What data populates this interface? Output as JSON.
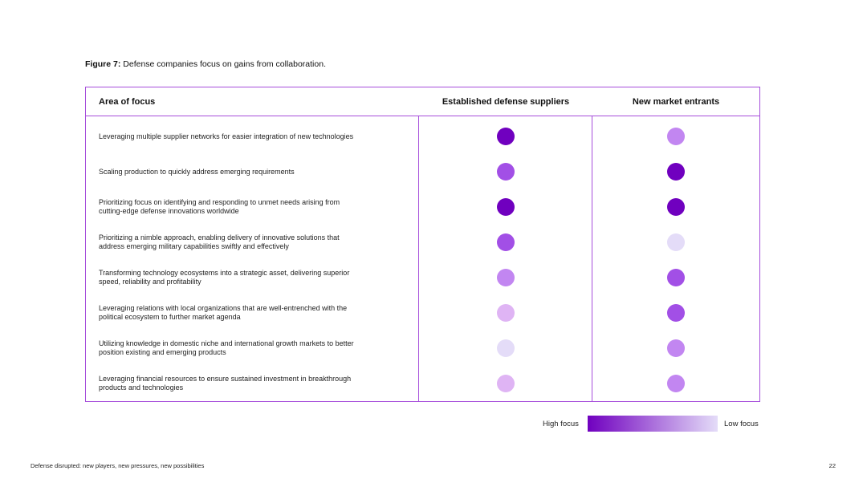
{
  "caption": {
    "label": "Figure 7:",
    "text": "Defense companies focus on gains from collaboration."
  },
  "columns": {
    "area": "Area of focus",
    "established": "Established defense suppliers",
    "entrants": "New market entrants"
  },
  "legend": {
    "high": "High focus",
    "low": "Low focus",
    "color_high": "#7000bf",
    "color_low": "#e4dcf8"
  },
  "chart_data": {
    "type": "table",
    "scale": "focus level from 1 (low focus) to 5 (high focus)",
    "series": [
      {
        "name": "Established defense suppliers",
        "values": [
          5,
          4,
          5,
          4,
          3,
          2,
          1,
          2
        ]
      },
      {
        "name": "New market entrants",
        "values": [
          3,
          5,
          5,
          1,
          4,
          4,
          3,
          3
        ]
      }
    ],
    "rows": [
      "Leveraging multiple supplier networks for easier integration of new technologies",
      "Scaling production to quickly address emerging requirements",
      "Prioritizing focus on identifying and responding to unmet needs arising from cutting-edge defense innovations worldwide",
      "Prioritizing a nimble approach, enabling delivery of innovative solutions that address emerging military capabilities swiftly and effectively",
      "Transforming technology ecosystems into a strategic asset, delivering superior speed, reliability and profitability",
      "Leveraging relations with local organizations that are well-entrenched with the political ecosystem to further market agenda",
      "Utilizing knowledge in domestic niche and international growth markets to better position existing and emerging products",
      "Leveraging financial resources to ensure sustained investment in breakthrough products and technologies"
    ],
    "level_colors": {
      "1": "#e4dcf8",
      "2": "#dfb4f4",
      "3": "#c286f1",
      "4": "#a24fe6",
      "5": "#7000bf"
    }
  },
  "footer": {
    "left": "Defense disrupted: new players, new pressures, new possibilities",
    "page": "22"
  }
}
